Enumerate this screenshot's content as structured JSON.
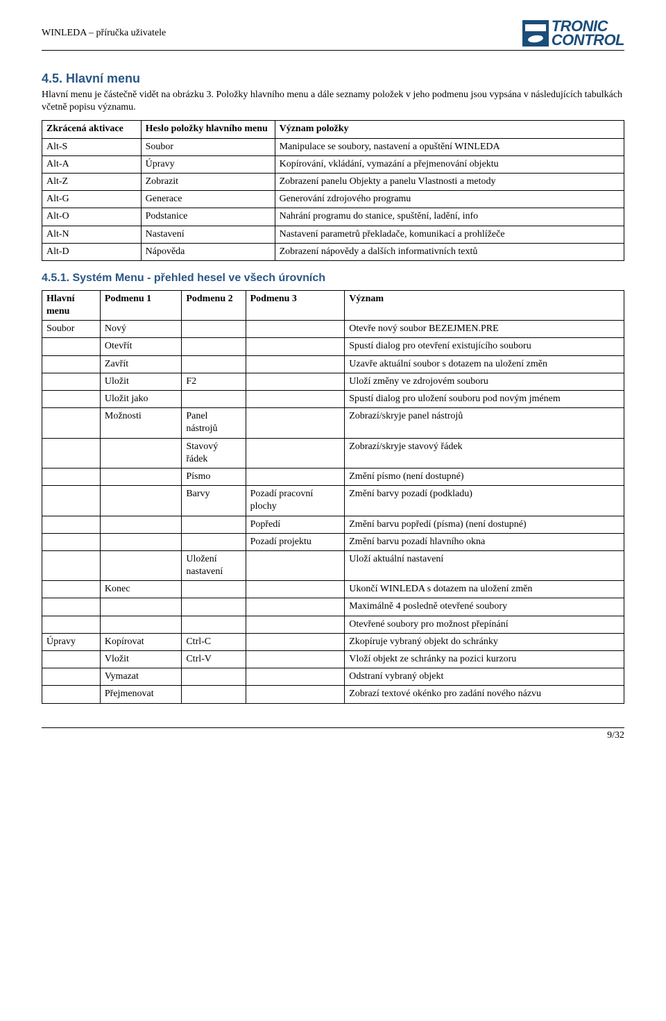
{
  "header": {
    "title": "WINLEDA – příručka uživatele",
    "logo_line1": "TRONIC",
    "logo_line2": "CONTROL"
  },
  "section": {
    "title": "4.5. Hlavní menu",
    "intro": "Hlavní menu je částečně vidět na obrázku 3. Položky hlavního menu a dále seznamy položek v jeho podmenu jsou vypsána v následujících tabulkách včetně popisu významu."
  },
  "table1": {
    "headers": [
      "Zkrácená aktivace",
      "Heslo položky hlavního menu",
      "Význam položky"
    ],
    "rows": [
      [
        "Alt-S",
        "Soubor",
        "Manipulace se soubory, nastavení a opuštění WINLEDA"
      ],
      [
        "Alt-A",
        "Úpravy",
        "Kopírování, vkládání, vymazání a přejmenování objektu"
      ],
      [
        "Alt-Z",
        "Zobrazit",
        "Zobrazení panelu Objekty a panelu Vlastnosti a metody"
      ],
      [
        "Alt-G",
        "Generace",
        "Generování zdrojového programu"
      ],
      [
        "Alt-O",
        "Podstanice",
        "Nahrání programu do stanice, spuštění, ladění, info"
      ],
      [
        "Alt-N",
        "Nastavení",
        "Nastavení parametrů překladače, komunikací a prohlížeče"
      ],
      [
        "Alt-D",
        "Nápověda",
        "Zobrazení nápovědy a dalších informativních textů"
      ]
    ]
  },
  "subsection": {
    "title": "4.5.1. Systém Menu - přehled hesel ve všech úrovních"
  },
  "table2": {
    "headers": [
      "Hlavní menu",
      "Podmenu 1",
      "Podmenu 2",
      "Podmenu 3",
      "Význam"
    ],
    "rows": [
      [
        "Soubor",
        "Nový",
        "",
        "",
        "Otevře nový soubor BEZEJMEN.PRE"
      ],
      [
        "",
        "Otevřít",
        "",
        "",
        "Spustí dialog pro otevření existujícího souboru"
      ],
      [
        "",
        "Zavřít",
        "",
        "",
        "Uzavře aktuální soubor s dotazem na uložení změn"
      ],
      [
        "",
        "Uložit",
        "F2",
        "",
        "Uloží změny ve zdrojovém souboru"
      ],
      [
        "",
        "Uložit jako",
        "",
        "",
        "Spustí dialog pro uložení souboru pod novým jménem"
      ],
      [
        "",
        "Možnosti",
        "Panel nástrojů",
        "",
        "Zobrazí/skryje panel nástrojů"
      ],
      [
        "",
        "",
        "Stavový řádek",
        "",
        "Zobrazí/skryje stavový řádek"
      ],
      [
        "",
        "",
        "Písmo",
        "",
        "Změní písmo (není dostupné)"
      ],
      [
        "",
        "",
        "Barvy",
        "Pozadí pracovní plochy",
        "Změní barvy pozadí (podkladu)"
      ],
      [
        "",
        "",
        "",
        "Popředí",
        "Změní barvu popředí (písma) (není dostupné)"
      ],
      [
        "",
        "",
        "",
        "Pozadí projektu",
        "Změní barvu pozadí hlavního okna"
      ],
      [
        "",
        "",
        "Uložení nastavení",
        "",
        "Uloží aktuální nastavení"
      ],
      [
        "",
        "Konec",
        "",
        "",
        "Ukončí WINLEDA s dotazem na uložení změn"
      ],
      [
        "",
        "",
        "",
        "",
        "Maximálně 4 posledně otevřené soubory"
      ],
      [
        "",
        "",
        "",
        "",
        "Otevřené soubory pro možnost přepínání"
      ],
      [
        "Úpravy",
        "Kopírovat",
        "Ctrl-C",
        "",
        "Zkopíruje vybraný objekt do schránky"
      ],
      [
        "",
        "Vložit",
        "Ctrl-V",
        "",
        "Vloží objekt ze schránky na pozici kurzoru"
      ],
      [
        "",
        "Vymazat",
        "",
        "",
        "Odstraní vybraný objekt"
      ],
      [
        "",
        "Přejmenovat",
        "",
        "",
        "Zobrazí textové okénko pro zadání nového názvu"
      ]
    ]
  },
  "footer": {
    "page": "9/32"
  }
}
